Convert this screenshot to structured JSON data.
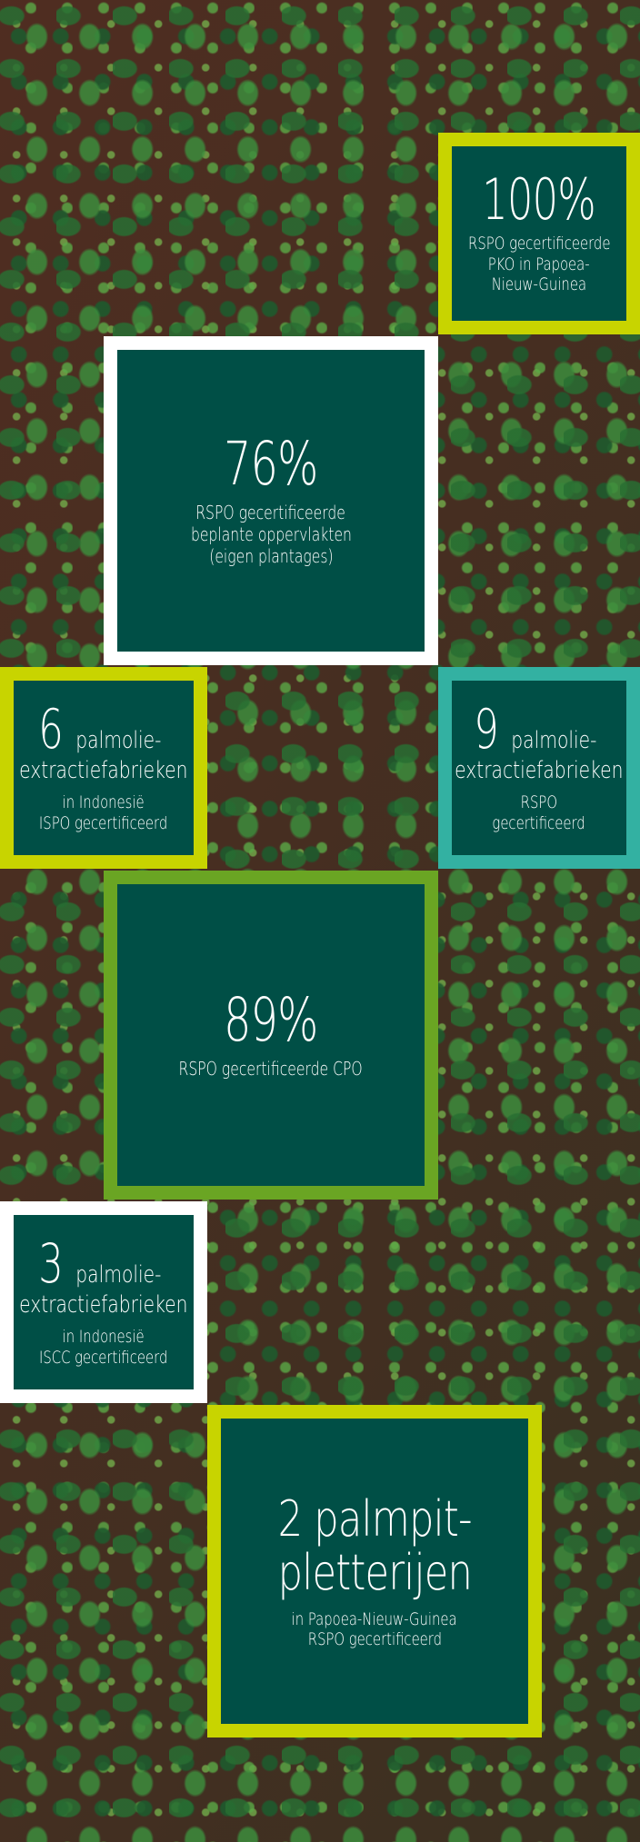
{
  "stats": {
    "pko": {
      "number": "100%",
      "lines": [
        "RSPO gecertificeerde",
        "PKO in Papoea-",
        "Nieuw-Guinea"
      ]
    },
    "planted": {
      "number": "76%",
      "lines": [
        "RSPO gecertificeerde",
        "beplante oppervlakten",
        "(eigen plantages)"
      ]
    },
    "ispo_mills": {
      "number": "6",
      "suffix": "palmolie-",
      "line2": "extractiefabrieken",
      "lines": [
        "in Indonesië",
        "ISPO gecertificeerd"
      ]
    },
    "rspo_mills": {
      "number": "9",
      "suffix": "palmolie-",
      "line2": "extractiefabrieken",
      "lines": [
        "RSPO",
        "gecertificeerd"
      ]
    },
    "cpo": {
      "number": "89%",
      "lines": [
        "RSPO gecertificeerde CPO"
      ]
    },
    "iscc_mills": {
      "number": "3",
      "suffix": "palmolie-",
      "line2": "extractiefabrieken",
      "lines": [
        "in Indonesië",
        "ISCC gecertificeerd"
      ]
    },
    "kernel": {
      "title_line1": "2 palmpit-",
      "title_line2": "pletterijen",
      "lines": [
        "in Papoea-Nieuw-Guinea",
        "RSPO gecertificeerd"
      ]
    }
  },
  "colors": {
    "tile": "#004f46",
    "lime": "#c8d400",
    "white": "#ffffff",
    "teal": "#33b1a2",
    "green": "#6aa523"
  }
}
